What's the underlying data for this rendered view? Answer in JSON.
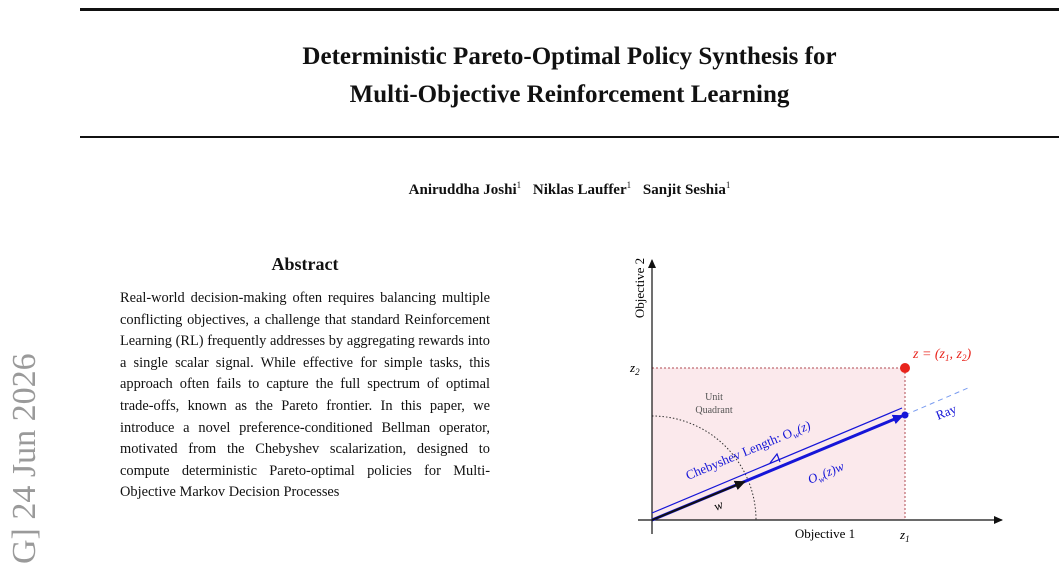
{
  "page": {
    "side_identifier": "G]   24 Jun 2026",
    "title_lines": [
      "Deterministic Pareto-Optimal Policy Synthesis for",
      "Multi-Objective Reinforcement Learning"
    ],
    "authors": [
      {
        "name": "Aniruddha Joshi",
        "affiliation": "1"
      },
      {
        "name": "Niklas Lauffer",
        "affiliation": "1"
      },
      {
        "name": "Sanjit Seshia",
        "affiliation": "1"
      }
    ],
    "abstract": {
      "heading": "Abstract",
      "text": "Real-world decision-making often requires balancing multiple conflicting objectives, a challenge that standard Reinforcement Learning (RL) frequently addresses by aggregating rewards into a single scalar signal. While effective for simple tasks, this approach often fails to capture the full spectrum of optimal trade-offs, known as the Pareto frontier. In this paper, we introduce a novel preference-conditioned Bellman operator, motivated from the Chebyshev scalarization, designed to compute deterministic Pareto-optimal policies for Multi-Objective Markov Decision Processes"
    }
  },
  "figure": {
    "x_axis_label": "Objective 1",
    "y_axis_label": "Objective 2",
    "x_tick": "z",
    "x_tick_sub": "1",
    "y_tick": "z",
    "y_tick_sub": "2",
    "point_label": "z = (z",
    "point_label_mid": ", z",
    "point_label_end": ")",
    "unit_quadrant_line1": "Unit",
    "unit_quadrant_line2": "Quadrant",
    "ray_label": "Ray",
    "chebyshev_label": "Chebyshev Length: O",
    "chebyshev_label_sub": "w",
    "chebyshev_label_end": "(z)",
    "scaled_vector_label": "O",
    "scaled_vector_label_sub": "w",
    "scaled_vector_label_end": "(z)w",
    "w_label": "w",
    "colors": {
      "point": "#e8241c",
      "vector": "#1515d8",
      "ray": "#7a9cf0",
      "region": "#fbe9ec",
      "dashed_box": "#b24a52"
    }
  }
}
